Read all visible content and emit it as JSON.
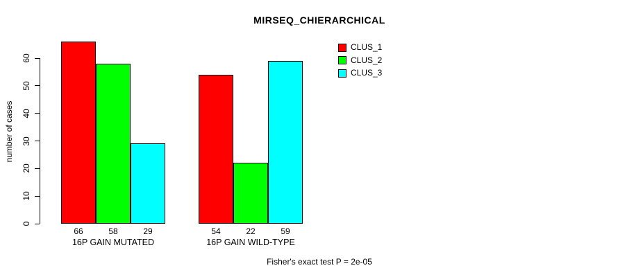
{
  "figure": {
    "title": "MIRSEQ_CHIERARCHICAL",
    "footer": "Fisher's exact test P = 2e-05"
  },
  "chart_data": {
    "type": "bar",
    "title": "MIRSEQ_CHIERARCHICAL",
    "xlabel": "",
    "ylabel": "number of cases",
    "categories": [
      "16P GAIN MUTATED",
      "16P GAIN WILD-TYPE"
    ],
    "series": [
      {
        "name": "CLUS_1",
        "color": "#ff0000",
        "values": [
          66,
          54
        ]
      },
      {
        "name": "CLUS_2",
        "color": "#00ff00",
        "values": [
          58,
          22
        ]
      },
      {
        "name": "CLUS_3",
        "color": "#00ffff",
        "values": [
          29,
          59
        ]
      }
    ],
    "bar_value_labels": [
      [
        66,
        58,
        29
      ],
      [
        54,
        22,
        59
      ]
    ],
    "yticks": [
      0,
      10,
      20,
      30,
      40,
      50,
      60
    ],
    "ylim": [
      0,
      66
    ],
    "grid": false,
    "legend_position": "top-right",
    "annotation": "Fisher's exact test P = 2e-05",
    "bar_border_color": "#000000",
    "axis_color": "#000000",
    "background_color": "#ffffff"
  }
}
